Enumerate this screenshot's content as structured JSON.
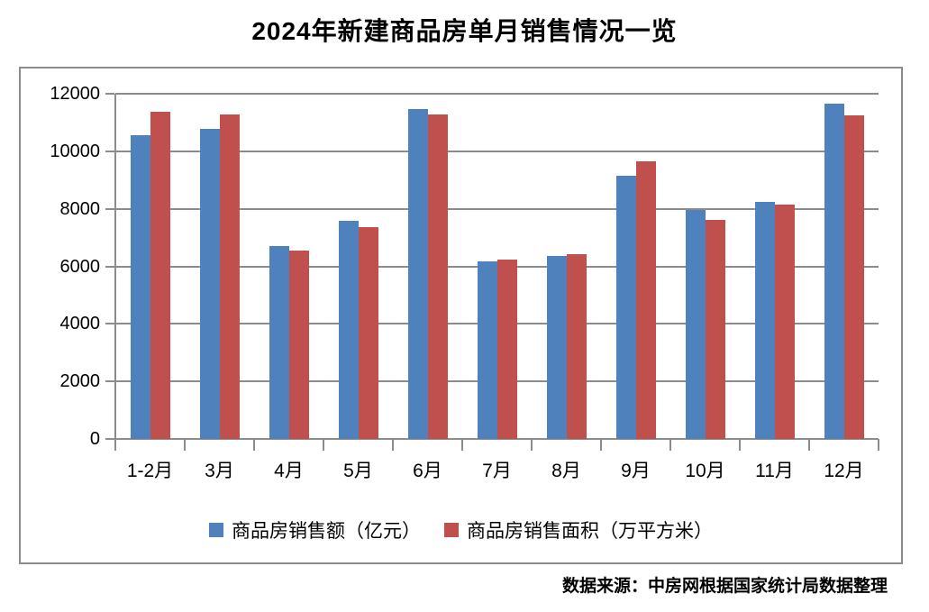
{
  "title": "2024年新建商品房单月销售情况一览",
  "source_note": "数据来源：中房网根据国家统计局数据整理",
  "colors": {
    "series1": "#4f81bd",
    "series2": "#c0504d",
    "grid": "#8c8c8c",
    "text": "#000000",
    "background": "#ffffff"
  },
  "chart_data": {
    "type": "bar",
    "title": "2024年新建商品房单月销售情况一览",
    "categories": [
      "1-2月",
      "3月",
      "4月",
      "5月",
      "6月",
      "7月",
      "8月",
      "9月",
      "10月",
      "11月",
      "12月"
    ],
    "series": [
      {
        "name": "商品房销售额（亿元）",
        "color": "#4f81bd",
        "values": [
          10560,
          10790,
          6700,
          7580,
          11470,
          6170,
          6360,
          9150,
          7970,
          8250,
          11650
        ]
      },
      {
        "name": "商品房销售面积（万平方米）",
        "color": "#c0504d",
        "values": [
          11370,
          11290,
          6550,
          7360,
          11270,
          6230,
          6420,
          9650,
          7620,
          8150,
          11240
        ]
      }
    ],
    "xlabel": "",
    "ylabel": "",
    "ylim": [
      0,
      12000
    ],
    "yticks": [
      0,
      2000,
      4000,
      6000,
      8000,
      10000,
      12000
    ],
    "grid": true,
    "legend_position": "bottom",
    "source": "数据来源：中房网根据国家统计局数据整理"
  }
}
